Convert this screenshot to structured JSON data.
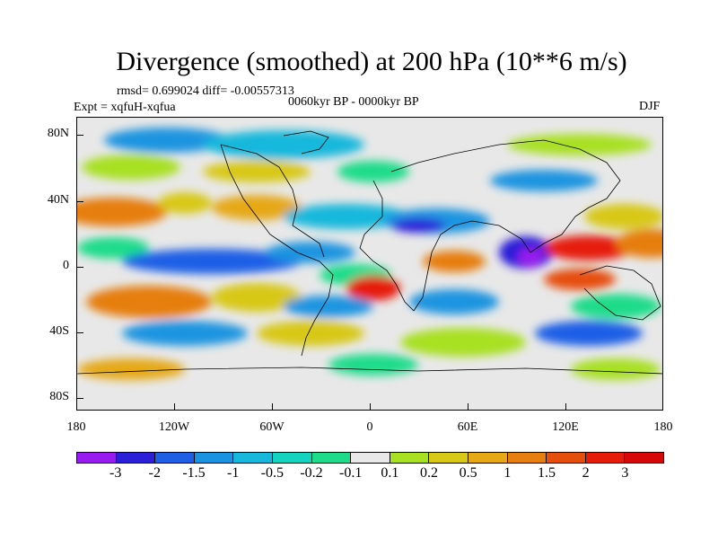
{
  "title": "Divergence (smoothed) at 200 hPa (10**6 m/s)",
  "stats": "rmsd= 0.699024 diff= -0.00557313",
  "experiment": "Expt = xqfuH-xqfua",
  "period": "0060kyr BP - 0000kyr BP",
  "season": "DJF",
  "y_ticks": [
    "80N",
    "40N",
    "0",
    "40S",
    "80S"
  ],
  "x_ticks": [
    "180",
    "120W",
    "60W",
    "0",
    "60E",
    "120E",
    "180"
  ],
  "colorbar": {
    "labels": [
      "-3",
      "-2",
      "-1.5",
      "-1",
      "-0.5",
      "-0.2",
      "-0.1",
      "0.1",
      "0.2",
      "0.5",
      "1",
      "1.5",
      "2",
      "3"
    ],
    "colors": [
      "#9a1bf0",
      "#2b1fd8",
      "#1f5fe6",
      "#1a94e0",
      "#17b8dc",
      "#14d4c0",
      "#1fdc8a",
      "#e8e8e8",
      "#a8e022",
      "#d8c818",
      "#e6a814",
      "#e67e10",
      "#e64e0c",
      "#e61c08",
      "#d80808"
    ]
  },
  "colors": {
    "neutral": "#e8e8e8",
    "frame": "#000000"
  }
}
